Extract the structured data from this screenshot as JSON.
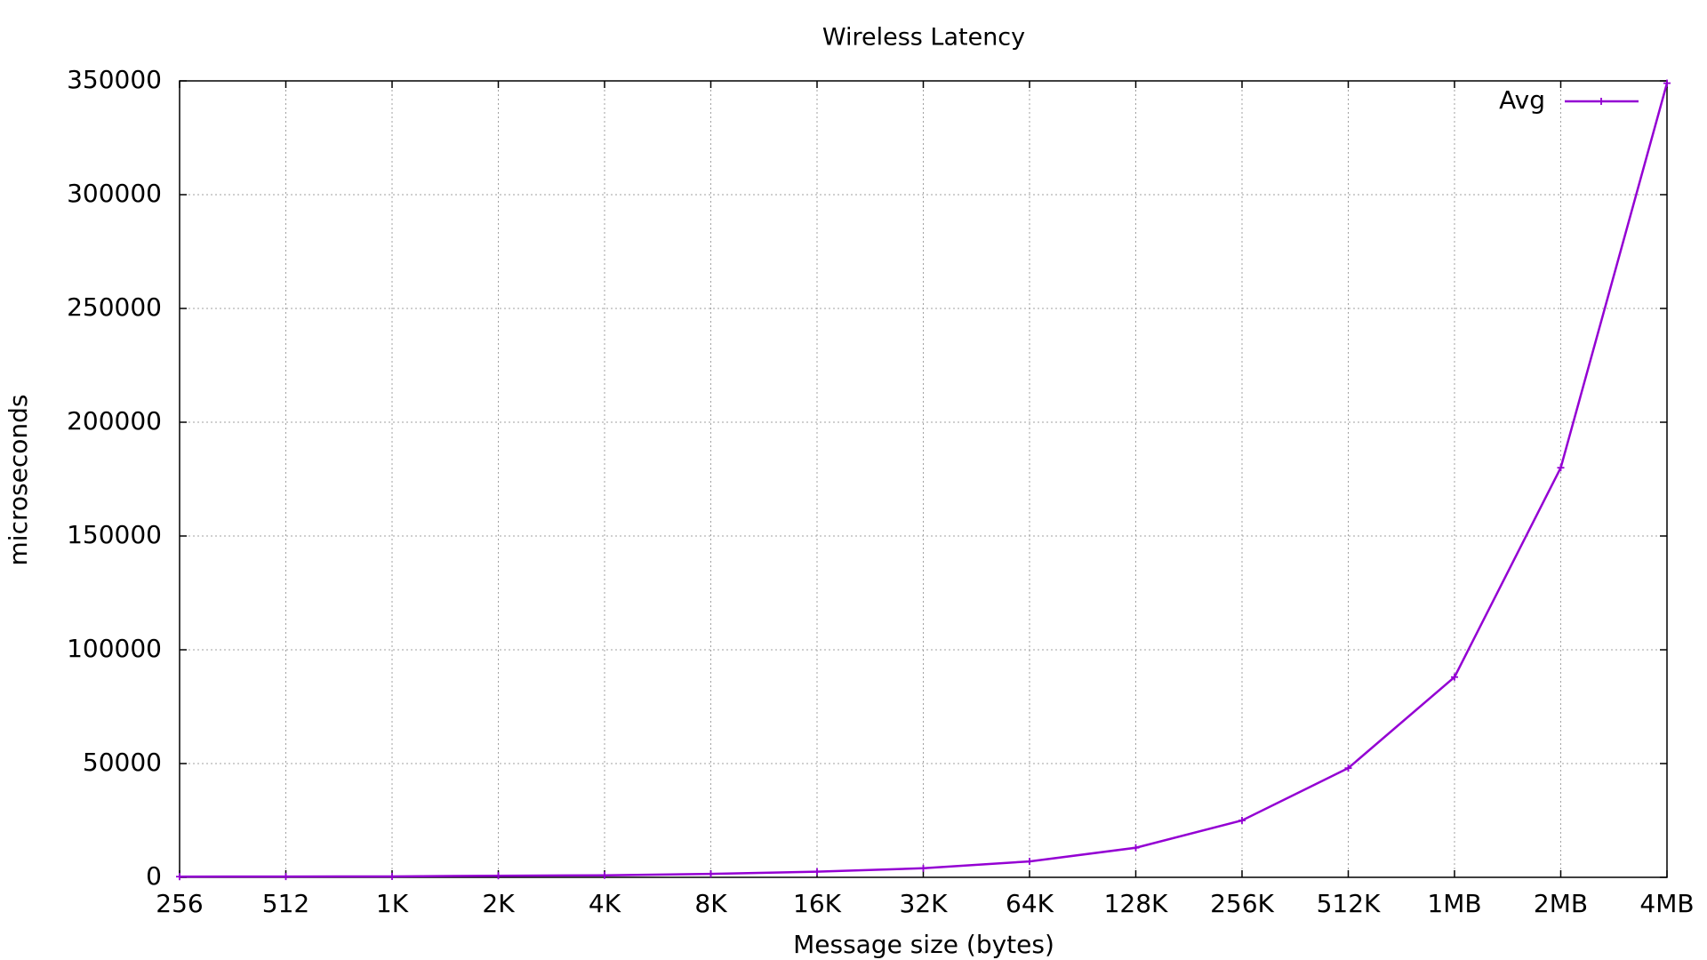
{
  "chart_data": {
    "type": "line",
    "title": "Wireless Latency",
    "xlabel": "Message size (bytes)",
    "ylabel": "microseconds",
    "categories": [
      "256",
      "512",
      "1K",
      "2K",
      "4K",
      "8K",
      "16K",
      "32K",
      "64K",
      "128K",
      "256K",
      "512K",
      "1MB",
      "2MB",
      "4MB"
    ],
    "y_ticks": [
      "0",
      "50000",
      "100000",
      "150000",
      "200000",
      "250000",
      "300000",
      "350000"
    ],
    "ylim": [
      0,
      350000
    ],
    "grid": true,
    "legend": {
      "position": "top-right"
    },
    "series": [
      {
        "name": "Avg",
        "color": "#9400d3",
        "values": [
          300,
          350,
          400,
          700,
          900,
          1500,
          2500,
          4000,
          7000,
          13000,
          25000,
          48000,
          88000,
          180000,
          349000
        ]
      }
    ]
  }
}
